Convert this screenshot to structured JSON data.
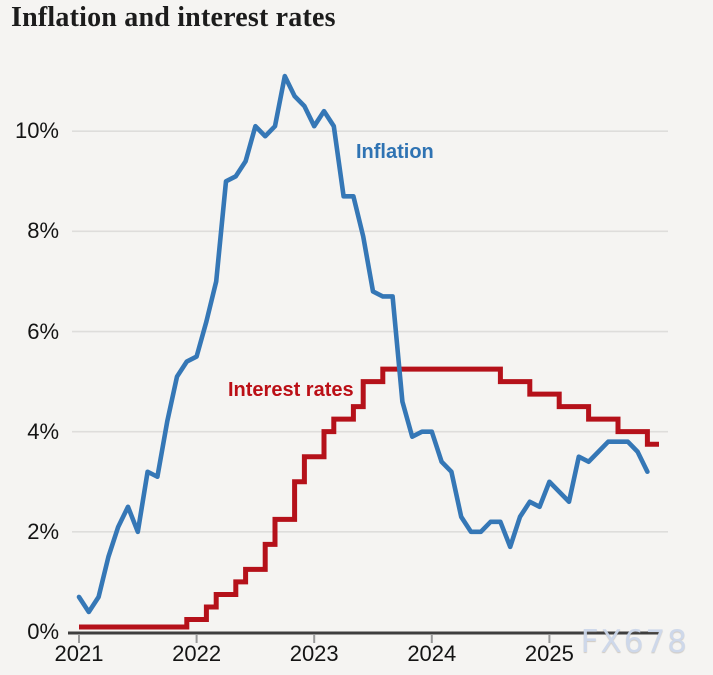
{
  "title": "Inflation and interest rates",
  "watermark": "FX678",
  "colors": {
    "inflation_line": "#3577b6",
    "inflation_label": "#2f73b3",
    "rates_line": "#b5111a",
    "rates_label": "#bb0f16",
    "gridline": "#dedddb",
    "axis": "#3e3e3e",
    "tick": "#9a9a9a",
    "watermark": "#ccd7ea",
    "background": "#f5f4f2"
  },
  "chart_data": {
    "type": "line",
    "title": "Inflation and interest rates",
    "xlabel": "",
    "ylabel": "",
    "grid": "horizontal",
    "legend_position": "inline-annotations",
    "x_start": "2021-01",
    "x_tick_labels": [
      "2021",
      "2022",
      "2023",
      "2024",
      "2025"
    ],
    "y_tick_labels": [
      "0%",
      "2%",
      "4%",
      "6%",
      "8%",
      "10%"
    ],
    "y_tick_values": [
      0,
      2,
      4,
      6,
      8,
      10
    ],
    "ylim": [
      0,
      11.7
    ],
    "series": [
      {
        "name": "Inflation",
        "style": "line",
        "unit": "%",
        "values": [
          0.7,
          0.4,
          0.7,
          1.5,
          2.1,
          2.5,
          2.0,
          3.2,
          3.1,
          4.2,
          5.1,
          5.4,
          5.5,
          6.2,
          7.0,
          9.0,
          9.1,
          9.4,
          10.1,
          9.9,
          10.1,
          11.1,
          10.7,
          10.5,
          10.1,
          10.4,
          10.1,
          8.7,
          8.7,
          7.9,
          6.8,
          6.7,
          6.7,
          4.6,
          3.9,
          4.0,
          4.0,
          3.4,
          3.2,
          2.3,
          2.0,
          2.0,
          2.2,
          2.2,
          1.7,
          2.3,
          2.6,
          2.5,
          3.0,
          2.8,
          2.6,
          3.5,
          3.4,
          3.6,
          3.8,
          3.8,
          3.8,
          3.6,
          3.2
        ]
      },
      {
        "name": "Interest rates",
        "style": "step-after",
        "unit": "%",
        "values": [
          0.1,
          0.1,
          0.1,
          0.1,
          0.1,
          0.1,
          0.1,
          0.1,
          0.1,
          0.1,
          0.1,
          0.25,
          0.25,
          0.5,
          0.75,
          0.75,
          1.0,
          1.25,
          1.25,
          1.75,
          2.25,
          2.25,
          3.0,
          3.5,
          3.5,
          4.0,
          4.25,
          4.25,
          4.5,
          5.0,
          5.0,
          5.25,
          5.25,
          5.25,
          5.25,
          5.25,
          5.25,
          5.25,
          5.25,
          5.25,
          5.25,
          5.25,
          5.25,
          5.0,
          5.0,
          5.0,
          4.75,
          4.75,
          4.75,
          4.5,
          4.5,
          4.5,
          4.25,
          4.25,
          4.25,
          4.0,
          4.0,
          4.0,
          3.75
        ]
      }
    ]
  }
}
